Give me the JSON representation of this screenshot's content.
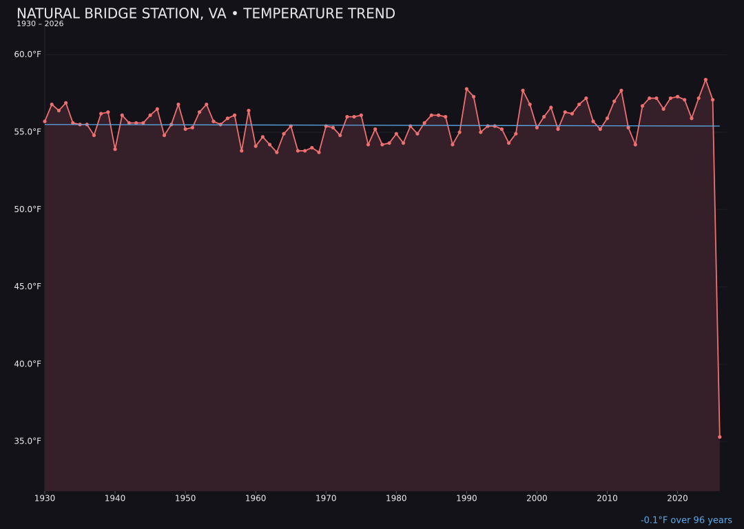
{
  "chart_data": {
    "type": "line",
    "title": "NATURAL BRIDGE STATION, VA • TEMPERATURE TREND",
    "subtitle": "1930 – 2026",
    "annotation": "-0.1°F over 96 years",
    "x": [
      1930,
      1931,
      1932,
      1933,
      1934,
      1935,
      1936,
      1937,
      1938,
      1939,
      1940,
      1941,
      1942,
      1943,
      1944,
      1945,
      1946,
      1947,
      1948,
      1949,
      1950,
      1951,
      1952,
      1953,
      1954,
      1955,
      1956,
      1957,
      1958,
      1959,
      1960,
      1961,
      1962,
      1963,
      1964,
      1965,
      1966,
      1967,
      1968,
      1969,
      1970,
      1971,
      1972,
      1973,
      1974,
      1975,
      1976,
      1977,
      1978,
      1979,
      1980,
      1981,
      1982,
      1983,
      1984,
      1985,
      1986,
      1987,
      1988,
      1989,
      1990,
      1991,
      1992,
      1993,
      1994,
      1995,
      1996,
      1997,
      1998,
      1999,
      2000,
      2001,
      2002,
      2003,
      2004,
      2005,
      2006,
      2007,
      2008,
      2009,
      2010,
      2011,
      2012,
      2013,
      2014,
      2015,
      2016,
      2017,
      2018,
      2019,
      2020,
      2021,
      2022,
      2023,
      2024,
      2025,
      2026
    ],
    "series": [
      {
        "color": "#f07070",
        "fill": "#35202a",
        "values": [
          55.7,
          56.8,
          56.4,
          56.9,
          55.6,
          55.5,
          55.5,
          54.8,
          56.2,
          56.3,
          53.9,
          56.1,
          55.6,
          55.6,
          55.6,
          56.1,
          56.5,
          54.8,
          55.5,
          56.8,
          55.2,
          55.3,
          56.3,
          56.8,
          55.7,
          55.5,
          55.9,
          56.1,
          53.8,
          56.4,
          54.1,
          54.7,
          54.2,
          53.7,
          54.9,
          55.4,
          53.8,
          53.8,
          54.0,
          53.7,
          55.4,
          55.3,
          54.8,
          56.0,
          56.0,
          56.1,
          54.2,
          55.2,
          54.2,
          54.3,
          54.9,
          54.3,
          55.4,
          54.9,
          55.6,
          56.1,
          56.1,
          56.0,
          54.2,
          55.0,
          57.8,
          57.3,
          55.0,
          55.4,
          55.4,
          55.2,
          54.3,
          54.9,
          57.7,
          56.8,
          55.3,
          56.0,
          56.6,
          55.2,
          56.3,
          56.2,
          56.8,
          57.2,
          55.7,
          55.2,
          55.9,
          57.0,
          57.7,
          55.3,
          54.2,
          56.7,
          57.2,
          57.2,
          56.5,
          57.2,
          57.3,
          57.1,
          55.9,
          57.2,
          58.4,
          57.1,
          35.3
        ]
      }
    ],
    "trend": {
      "color": "#5aa9e6",
      "x": [
        1930,
        2026
      ],
      "values": [
        55.5,
        55.4
      ]
    },
    "xlim": [
      1930,
      2027
    ],
    "xticks": [
      1930,
      1940,
      1950,
      1960,
      1970,
      1980,
      1990,
      2000,
      2010,
      2020
    ],
    "ylim": [
      31.8,
      61.9
    ],
    "yticks": [
      {
        "value": 35,
        "label": "35.0°F"
      },
      {
        "value": 40,
        "label": "40.0°F"
      },
      {
        "value": 45,
        "label": "45.0°F"
      },
      {
        "value": 50,
        "label": "50.0°F"
      },
      {
        "value": 55,
        "label": "55.0°F"
      },
      {
        "value": 60,
        "label": "60.0°F"
      }
    ],
    "grid": true
  }
}
